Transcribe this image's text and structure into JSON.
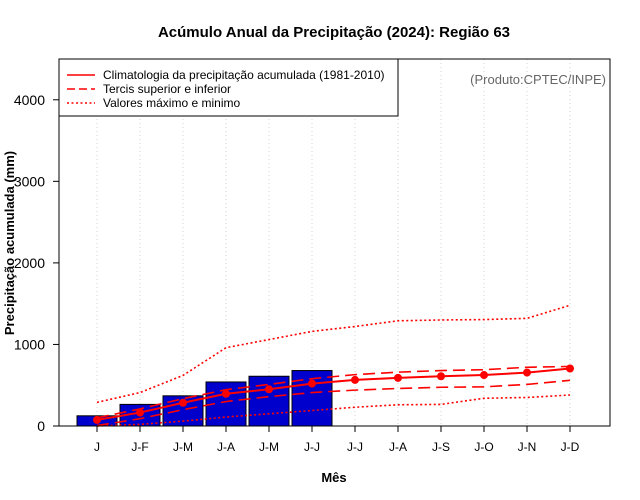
{
  "chart_data": {
    "type": "bar",
    "title": "Acúmulo Anual da Precipitação (2024): Região 63",
    "xlabel": "Mês",
    "ylabel": "Precipitação acumulada (mm)",
    "credit": "(Produto:CPTEC/INPE)",
    "ylim": [
      0,
      4500
    ],
    "yticks": [
      0,
      1000,
      2000,
      3000,
      4000
    ],
    "categories": [
      "J",
      "J-F",
      "J-M",
      "J-A",
      "J-M",
      "J-J",
      "J-J",
      "J-A",
      "J-S",
      "J-O",
      "J-N",
      "J-D"
    ],
    "bar_series": {
      "name": "2024",
      "color": "#0000CD",
      "values": [
        125,
        265,
        370,
        540,
        610,
        680
      ]
    },
    "series": [
      {
        "name": "Climatologia da precipitação acumulada (1981-2010)",
        "style": "solid-markers",
        "color": "#FF0000",
        "values": [
          75,
          165,
          285,
          395,
          450,
          520,
          565,
          590,
          610,
          625,
          655,
          705
        ]
      },
      {
        "name": "Tercis superior e inferior",
        "style": "dashed",
        "color": "#FF0000",
        "values": [
          100,
          210,
          335,
          445,
          510,
          580,
          630,
          660,
          680,
          690,
          720,
          730
        ]
      },
      {
        "name": "Tercis superior e inferior",
        "style": "dashed",
        "color": "#FF0000",
        "values": [
          5,
          90,
          200,
          300,
          360,
          410,
          440,
          460,
          475,
          480,
          510,
          560
        ]
      },
      {
        "name": "Valores máximo e minimo",
        "style": "dotted",
        "color": "#FF0000",
        "values": [
          290,
          410,
          620,
          960,
          1060,
          1160,
          1220,
          1290,
          1300,
          1305,
          1320,
          1480
        ]
      },
      {
        "name": "Valores máximo e minimo",
        "style": "dotted",
        "color": "#FF0000",
        "values": [
          0,
          20,
          60,
          110,
          150,
          190,
          230,
          260,
          265,
          340,
          350,
          380
        ]
      }
    ],
    "legend": {
      "position": "top-left",
      "entries": [
        {
          "label": "Climatologia da precipitação acumulada (1981-2010)",
          "style": "solid"
        },
        {
          "label": "Tercis superior e inferior",
          "style": "dashed"
        },
        {
          "label": "Valores máximo e minimo",
          "style": "dotted"
        }
      ]
    },
    "grid": "vertical-dotted"
  }
}
